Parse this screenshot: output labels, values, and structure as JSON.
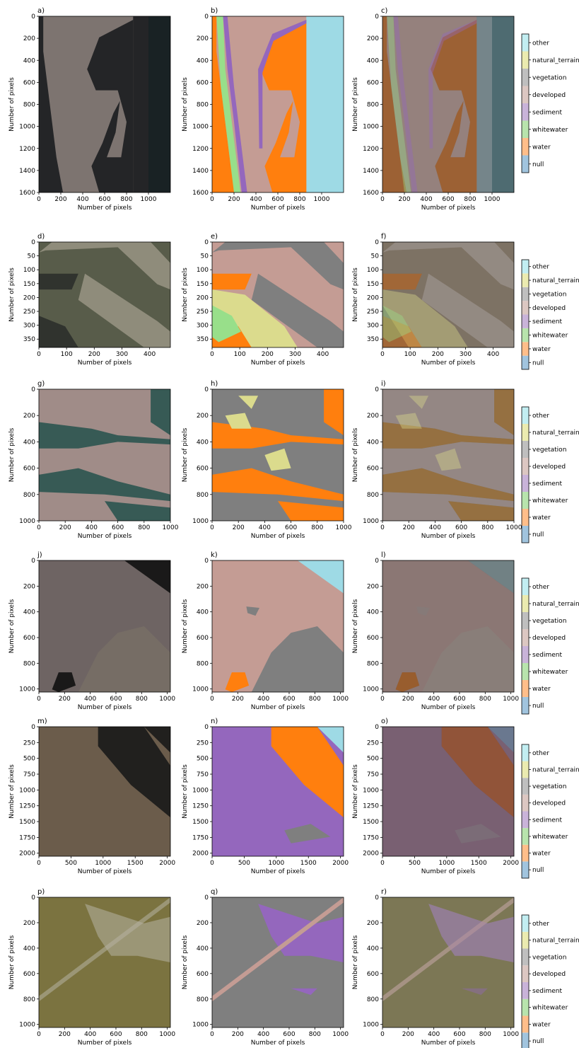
{
  "figure": {
    "axis_label": "Number of pixels",
    "classes": [
      "null",
      "water",
      "whitewater",
      "sediment",
      "developed",
      "vegetation",
      "natural_terrain",
      "other"
    ],
    "class_colors": {
      "null": "#a1c4de",
      "water": "#ffbe8a",
      "whitewater": "#b8e4ad",
      "sediment": "#c9b3d9",
      "developed": "#dcc7c2",
      "vegetation": "#bfbfbf",
      "natural_terrain": "#ebebb0",
      "other": "#c2eef2"
    },
    "label_colors": {
      "water": "#ff7f0e",
      "whitewater": "#98df8a",
      "sediment": "#9467bd",
      "developed": "#c49c94",
      "vegetation": "#7f7f7f",
      "natural_terrain": "#dbdb8d",
      "other": "#9edae5"
    }
  },
  "chart_data": [
    {
      "type": "heatmap",
      "row": 0,
      "panels": [
        "a)",
        "b)",
        "c)"
      ],
      "xlim": [
        0,
        1200
      ],
      "ylim": [
        0,
        1600
      ],
      "xticks": [
        0,
        200,
        400,
        600,
        800,
        1000
      ],
      "yticks": [
        0,
        200,
        400,
        600,
        800,
        1000,
        1200,
        1400,
        1600
      ],
      "image_width": 1000,
      "classes_present": [
        "water",
        "whitewater",
        "sediment",
        "developed",
        "other"
      ]
    },
    {
      "type": "heatmap",
      "row": 1,
      "panels": [
        "d)",
        "e)",
        "f)"
      ],
      "xlim": [
        0,
        475
      ],
      "ylim": [
        0,
        380
      ],
      "xticks": [
        0,
        100,
        200,
        300,
        400
      ],
      "yticks": [
        0,
        50,
        100,
        150,
        200,
        250,
        300,
        350
      ],
      "classes_present": [
        "water",
        "whitewater",
        "developed",
        "vegetation",
        "natural_terrain"
      ]
    },
    {
      "type": "heatmap",
      "row": 2,
      "panels": [
        "g)",
        "h)",
        "i)"
      ],
      "xlim": [
        0,
        1000
      ],
      "ylim": [
        0,
        1000
      ],
      "xticks": [
        0,
        200,
        400,
        600,
        800,
        1000
      ],
      "yticks": [
        0,
        200,
        400,
        600,
        800,
        1000
      ],
      "classes_present": [
        "water",
        "vegetation",
        "natural_terrain"
      ]
    },
    {
      "type": "heatmap",
      "row": 3,
      "panels": [
        "j)",
        "k)",
        "l)"
      ],
      "xlim": [
        0,
        1024
      ],
      "ylim": [
        0,
        1024
      ],
      "xticks": [
        0,
        200,
        400,
        600,
        800,
        1000
      ],
      "yticks": [
        0,
        200,
        400,
        600,
        800,
        1000
      ],
      "classes_present": [
        "water",
        "developed",
        "vegetation",
        "other"
      ]
    },
    {
      "type": "heatmap",
      "row": 4,
      "panels": [
        "m)",
        "n)",
        "o)"
      ],
      "xlim": [
        0,
        2048
      ],
      "ylim": [
        0,
        2048
      ],
      "xticks": [
        0,
        500,
        1000,
        1500,
        2000
      ],
      "yticks": [
        0,
        250,
        500,
        750,
        1000,
        1250,
        1500,
        1750,
        2000
      ],
      "classes_present": [
        "water",
        "whitewater",
        "sediment",
        "vegetation",
        "other"
      ]
    },
    {
      "type": "heatmap",
      "row": 5,
      "panels": [
        "p)",
        "q)",
        "r)"
      ],
      "xlim": [
        0,
        1024
      ],
      "ylim": [
        0,
        1024
      ],
      "xticks": [
        0,
        200,
        400,
        600,
        800,
        1000
      ],
      "yticks": [
        0,
        200,
        400,
        600,
        800,
        1000
      ],
      "classes_present": [
        "sediment",
        "developed",
        "vegetation"
      ]
    }
  ]
}
